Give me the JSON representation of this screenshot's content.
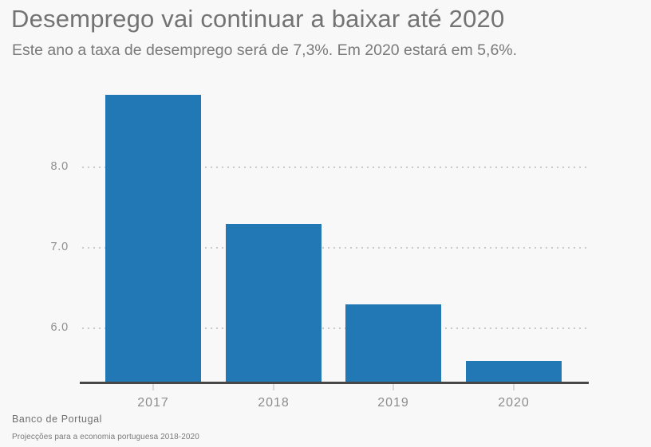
{
  "header": {
    "title": "Desemprego vai continuar a baixar até 2020",
    "subtitle": "Este ano a taxa de desemprego será de 7,3%. Em 2020 estará em 5,6%."
  },
  "chart_data": {
    "type": "bar",
    "title": "Desemprego vai continuar a baixar até 2020",
    "subtitle": "Este ano a taxa de desemprego será de 7,3%. Em 2020 estará em 5,6%.",
    "categories": [
      "2017",
      "2018",
      "2019",
      "2020"
    ],
    "values": [
      8.9,
      7.3,
      6.3,
      5.6
    ],
    "xlabel": "",
    "ylabel": "",
    "yticks": [
      6.0,
      7.0,
      8.0
    ],
    "ytick_labels": [
      "6.0",
      "7.0",
      "8.0"
    ],
    "ylim": [
      5.33,
      9.0
    ],
    "grid": "horizontal-dotted",
    "legend": "none",
    "unit": "%"
  },
  "footer": {
    "source": "Banco de Portugal",
    "note": "Projecções para a economia portuguesa 2018-2020"
  },
  "colors": {
    "background": "#f8f8f8",
    "bar": "#2278b5",
    "axis": "#474747",
    "grid": "#c9c9c9",
    "tick": "#d8d8d8",
    "title_text": "#737373",
    "muted_text": "#8c8c8c"
  }
}
